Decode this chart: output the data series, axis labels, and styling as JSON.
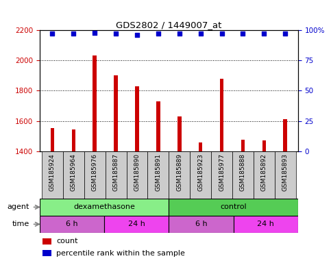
{
  "title": "GDS2802 / 1449007_at",
  "samples": [
    "GSM185924",
    "GSM185964",
    "GSM185976",
    "GSM185887",
    "GSM185890",
    "GSM185891",
    "GSM185889",
    "GSM185923",
    "GSM185977",
    "GSM185888",
    "GSM185892",
    "GSM185893"
  ],
  "counts": [
    1555,
    1545,
    2035,
    1900,
    1830,
    1730,
    1630,
    1460,
    1880,
    1475,
    1470,
    1610
  ],
  "percentile_ranks": [
    97,
    97,
    98,
    97,
    96,
    97,
    97,
    97,
    97,
    97,
    97,
    97
  ],
  "bar_color": "#cc0000",
  "dot_color": "#0000cc",
  "ylim_left": [
    1400,
    2200
  ],
  "ylim_right": [
    0,
    100
  ],
  "yticks_left": [
    1400,
    1600,
    1800,
    2000,
    2200
  ],
  "yticks_right": [
    0,
    25,
    50,
    75,
    100
  ],
  "ytick_right_labels": [
    "0",
    "25",
    "50",
    "75",
    "100%"
  ],
  "agent_groups": [
    {
      "label": "dexamethasone",
      "start": 0,
      "end": 6,
      "color": "#88ee88"
    },
    {
      "label": "control",
      "start": 6,
      "end": 12,
      "color": "#55cc55"
    }
  ],
  "time_groups": [
    {
      "label": "6 h",
      "start": 0,
      "end": 3,
      "color": "#cc66cc"
    },
    {
      "label": "24 h",
      "start": 3,
      "end": 6,
      "color": "#ee44ee"
    },
    {
      "label": "6 h",
      "start": 6,
      "end": 9,
      "color": "#cc66cc"
    },
    {
      "label": "24 h",
      "start": 9,
      "end": 12,
      "color": "#ee44ee"
    }
  ],
  "label_box_color": "#cccccc",
  "bar_width": 0.18
}
